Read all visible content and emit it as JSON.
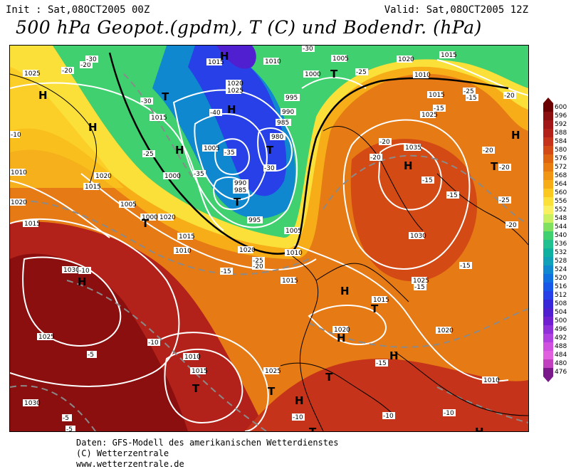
{
  "header": {
    "init": "Init : Sat,08OCT2005 00Z",
    "valid": "Valid: Sat,08OCT2005 12Z",
    "title": "500 hPa Geopot.(gpdm), T (C) und Bodendr. (hPa)"
  },
  "map": {
    "pressure_labels": [
      "1025",
      "1020",
      "1015",
      "1010",
      "1005",
      "1000",
      "995",
      "990",
      "985",
      "980",
      "1030",
      "1035",
      "1025",
      "1020",
      "1015",
      "1010",
      "1005",
      "1000",
      "995",
      "990",
      "985",
      "1030",
      "1025",
      "1020",
      "1015",
      "1010",
      "1005",
      "1020",
      "1015",
      "1010",
      "1020",
      "1015",
      "1025",
      "1030",
      "1020",
      "1015",
      "1010",
      "1015",
      "1025",
      "1010",
      "1015",
      "1020",
      "1010",
      "1005",
      "1015",
      "1000",
      "1025",
      "1015",
      "1020",
      "1020",
      "1015",
      "1010",
      "1005",
      "1005",
      "1010",
      "1015",
      "1025",
      "1020",
      "1015"
    ],
    "temp_labels": [
      "-20",
      "-30",
      "-20",
      "-30",
      "-40",
      "-35",
      "-35",
      "-30",
      "-30",
      "-25",
      "-25",
      "-25",
      "-20",
      "-15",
      "-20",
      "-20",
      "-15",
      "-15",
      "-20",
      "-20",
      "-20",
      "-15",
      "-10",
      "-10",
      "-10",
      "-5",
      "-5",
      "-5",
      "-10",
      "-15",
      "-15",
      "-10",
      "-10",
      "-15",
      "-15",
      "-25",
      "-20",
      "-25"
    ],
    "highs": [
      "H",
      "H",
      "H",
      "H",
      "H",
      "H",
      "H",
      "H",
      "H",
      "H",
      "H",
      "H",
      "H"
    ],
    "lows": [
      "T",
      "T",
      "T",
      "T",
      "T",
      "T",
      "T",
      "T",
      "T",
      "T",
      "T",
      "T"
    ]
  },
  "legend": {
    "labels": [
      "600",
      "596",
      "592",
      "588",
      "584",
      "580",
      "576",
      "572",
      "568",
      "564",
      "560",
      "556",
      "552",
      "548",
      "544",
      "540",
      "536",
      "532",
      "528",
      "524",
      "520",
      "516",
      "512",
      "508",
      "504",
      "500",
      "496",
      "492",
      "488",
      "484",
      "480",
      "476"
    ],
    "colors": [
      "#6b0000",
      "#8b0f0f",
      "#a11616",
      "#b3221a",
      "#c4331a",
      "#d44a14",
      "#df6410",
      "#e87c10",
      "#f09614",
      "#f6ad18",
      "#fbc820",
      "#fbe03a",
      "#f8f060",
      "#c8f060",
      "#80e060",
      "#40d070",
      "#20c090",
      "#10b0a0",
      "#10a0b8",
      "#1088d0",
      "#1070e0",
      "#1858e8",
      "#2840e8",
      "#3828d8",
      "#5020d0",
      "#7020d0",
      "#9030d8",
      "#b040e0",
      "#d050e0",
      "#e060e0",
      "#c040c0",
      "#7a1a8a"
    ]
  },
  "footer": {
    "line1": "Daten: GFS-Modell des amerikanischen Wetterdienstes",
    "line2": "(C) Wetterzentrale",
    "line3": "www.wetterzentrale.de"
  }
}
